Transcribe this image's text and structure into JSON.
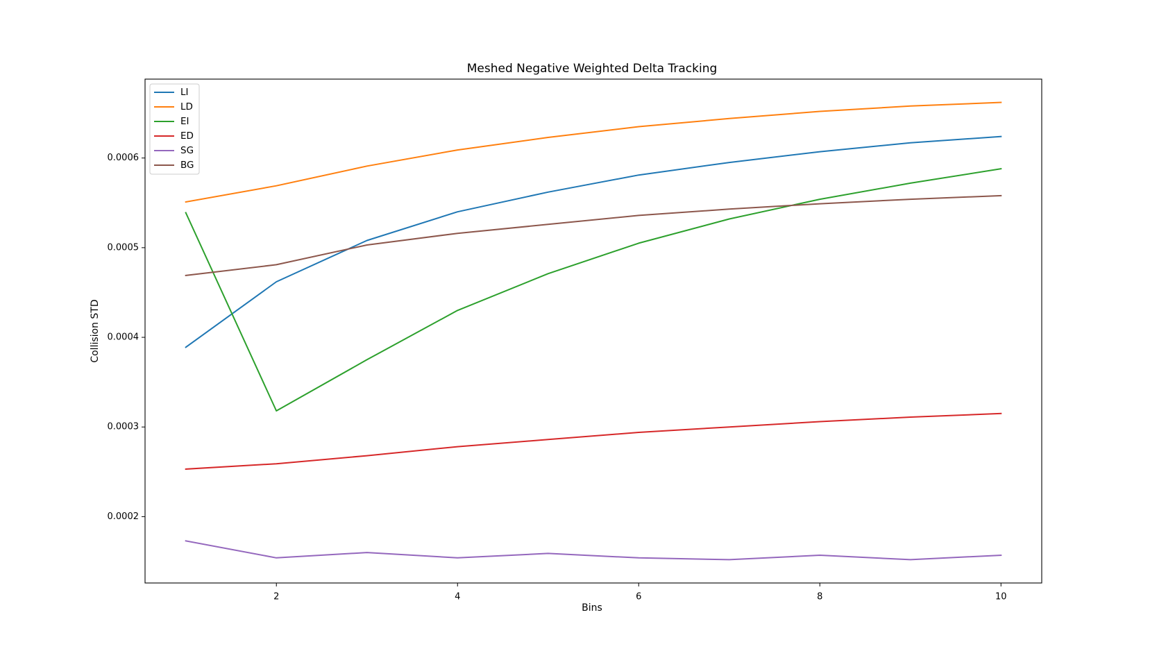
{
  "chart_data": {
    "type": "line",
    "title": "Meshed Negative Weighted Delta Tracking",
    "xlabel": "Bins",
    "ylabel": "Collision STD",
    "x": [
      1,
      2,
      3,
      4,
      5,
      6,
      7,
      8,
      9,
      10
    ],
    "xlim": [
      0.55,
      10.45
    ],
    "ylim": [
      0.000126,
      0.000688
    ],
    "xticks": [
      2,
      4,
      6,
      8,
      10
    ],
    "xtick_labels": [
      "2",
      "4",
      "6",
      "8",
      "10"
    ],
    "yticks": [
      0.0002,
      0.0003,
      0.0004,
      0.0005,
      0.0006
    ],
    "ytick_labels": [
      "0.0002",
      "0.0003",
      "0.0004",
      "0.0005",
      "0.0006"
    ],
    "grid": false,
    "legend_position": "top-left",
    "series": [
      {
        "name": "LI",
        "color": "#1f77b4",
        "values": [
          0.000389,
          0.000462,
          0.000508,
          0.00054,
          0.000562,
          0.000581,
          0.000595,
          0.000607,
          0.000617,
          0.000624
        ]
      },
      {
        "name": "LD",
        "color": "#ff7f0e",
        "values": [
          0.000551,
          0.000569,
          0.000591,
          0.000609,
          0.000623,
          0.000635,
          0.000644,
          0.000652,
          0.000658,
          0.000662
        ]
      },
      {
        "name": "EI",
        "color": "#2ca02c",
        "values": [
          0.000539,
          0.000318,
          0.000375,
          0.00043,
          0.000471,
          0.000505,
          0.000532,
          0.000554,
          0.000572,
          0.000588
        ]
      },
      {
        "name": "ED",
        "color": "#d62728",
        "values": [
          0.000253,
          0.000259,
          0.000268,
          0.000278,
          0.000286,
          0.000294,
          0.0003,
          0.000306,
          0.000311,
          0.000315
        ]
      },
      {
        "name": "SG",
        "color": "#9467bd",
        "values": [
          0.000173,
          0.000154,
          0.00016,
          0.000154,
          0.000159,
          0.000154,
          0.000152,
          0.000157,
          0.000152,
          0.000157
        ]
      },
      {
        "name": "BG",
        "color": "#8c564b",
        "values": [
          0.000469,
          0.000481,
          0.000503,
          0.000516,
          0.000526,
          0.000536,
          0.000543,
          0.000549,
          0.000554,
          0.000558
        ]
      }
    ]
  }
}
